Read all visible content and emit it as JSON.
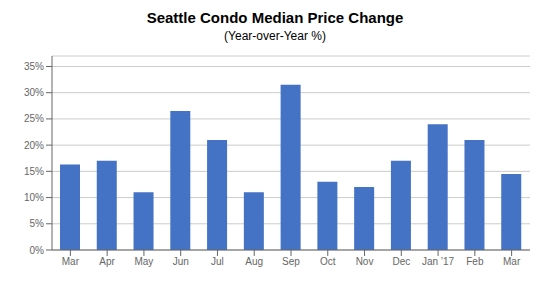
{
  "chart_data": {
    "type": "bar",
    "title": "Seattle Condo Median Price Change",
    "subtitle": "(Year-over-Year %)",
    "categories": [
      "Mar",
      "Apr",
      "May",
      "Jun",
      "Jul",
      "Aug",
      "Sep",
      "Oct",
      "Nov",
      "Dec",
      "Jan ’17",
      "Feb",
      "Mar"
    ],
    "values": [
      16.3,
      17.0,
      11.0,
      26.5,
      21.0,
      11.0,
      31.5,
      13.0,
      12.0,
      17.0,
      24.0,
      21.0,
      14.5
    ],
    "color": "#4472C4",
    "ylim": [
      0,
      37
    ],
    "yticks": [
      {
        "value": 0,
        "label": "0%"
      },
      {
        "value": 5,
        "label": "5%"
      },
      {
        "value": 10,
        "label": "10%"
      },
      {
        "value": 15,
        "label": "15%"
      },
      {
        "value": 20,
        "label": "20%"
      },
      {
        "value": 25,
        "label": "25%"
      },
      {
        "value": 30,
        "label": "30%"
      },
      {
        "value": 35,
        "label": "35%"
      }
    ],
    "grid": true
  }
}
